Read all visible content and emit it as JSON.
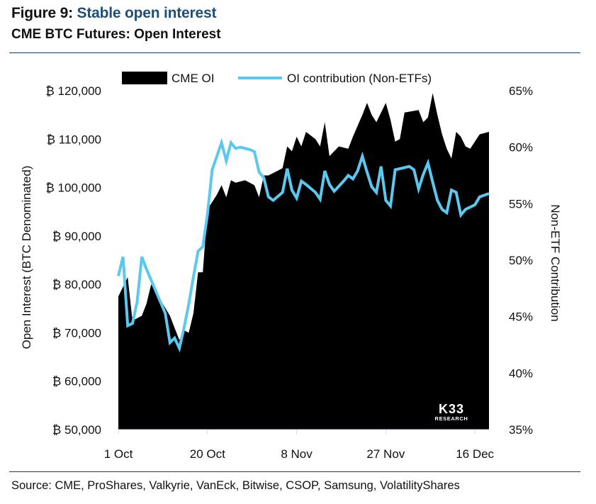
{
  "figure": {
    "label": "Figure 9:",
    "title": "Stable open interest",
    "subtitle": "CME BTC Futures: Open Interest",
    "source": "Source: CME, ProShares, Valkyrie, VanEck, Bitwise, CSOP, Samsung, VolatilityShares",
    "watermark_main": "K33",
    "watermark_sub": "RESEARCH"
  },
  "colors": {
    "area": "#000000",
    "line": "#5bc8f0",
    "title_accent": "#1f4e79",
    "rule": "#1f3864"
  },
  "chart_data": {
    "type": "area",
    "xlabel": "",
    "ylabel": "Open Interest (BTC Denominated)",
    "y2label": "Non-ETF Contribution",
    "ylim": [
      50000,
      120000
    ],
    "y2lim": [
      0.35,
      0.65
    ],
    "yticks": [
      "₿ 120,000",
      "₿ 110,000",
      "₿ 100,000",
      "₿ 90,000",
      "₿ 80,000",
      "₿ 70,000",
      "₿ 60,000",
      "₿ 50,000"
    ],
    "y2ticks": [
      "65%",
      "60%",
      "55%",
      "50%",
      "45%",
      "40%",
      "35%"
    ],
    "xticks": [
      "1 Oct",
      "20 Oct",
      "8 Nov",
      "27 Nov",
      "16 Dec"
    ],
    "x_range": [
      "1 Oct",
      "19 Dec"
    ],
    "legend": "top",
    "grid": false,
    "series": [
      {
        "name": "CME OI",
        "kind": "area",
        "axis": "left",
        "points": [
          [
            "1 Oct",
            77500
          ],
          [
            "3 Oct",
            81500
          ],
          [
            "4 Oct",
            72500
          ],
          [
            "6 Oct",
            73500
          ],
          [
            "7 Oct",
            76000
          ],
          [
            "8 Oct",
            80000
          ],
          [
            "12 Oct",
            73500
          ],
          [
            "13 Oct",
            71000
          ],
          [
            "14 Oct",
            68500
          ],
          [
            "15 Oct",
            70500
          ],
          [
            "16 Oct",
            70000
          ],
          [
            "17 Oct",
            74000
          ],
          [
            "18 Oct",
            82500
          ],
          [
            "19 Oct",
            82500
          ],
          [
            "20 Oct",
            95500
          ],
          [
            "22 Oct",
            98500
          ],
          [
            "23 Oct",
            100500
          ],
          [
            "24 Oct",
            98000
          ],
          [
            "25 Oct",
            101500
          ],
          [
            "26 Oct",
            101000
          ],
          [
            "28 Oct",
            101500
          ],
          [
            "30 Oct",
            100500
          ],
          [
            "31 Oct",
            98000
          ],
          [
            "1 Nov",
            102500
          ],
          [
            "2 Nov",
            102500
          ],
          [
            "4 Nov",
            103500
          ],
          [
            "5 Nov",
            104000
          ],
          [
            "6 Nov",
            108500
          ],
          [
            "7 Nov",
            107500
          ],
          [
            "8 Nov",
            110500
          ],
          [
            "9 Nov",
            108500
          ],
          [
            "10 Nov",
            111500
          ],
          [
            "12 Nov",
            110000
          ],
          [
            "13 Nov",
            108500
          ],
          [
            "14 Nov",
            113500
          ],
          [
            "15 Nov",
            106500
          ],
          [
            "17 Nov",
            108500
          ],
          [
            "19 Nov",
            108000
          ],
          [
            "20 Nov",
            110500
          ],
          [
            "22 Nov",
            115000
          ],
          [
            "23 Nov",
            117500
          ],
          [
            "24 Nov",
            115000
          ],
          [
            "25 Nov",
            113500
          ],
          [
            "27 Nov",
            117500
          ],
          [
            "28 Nov",
            114000
          ],
          [
            "29 Nov",
            109500
          ],
          [
            "30 Nov",
            110000
          ],
          [
            "1 Dec",
            115500
          ],
          [
            "4 Dec",
            116000
          ],
          [
            "5 Dec",
            113500
          ],
          [
            "6 Dec",
            114500
          ],
          [
            "7 Dec",
            119500
          ],
          [
            "8 Dec",
            115000
          ],
          [
            "9 Dec",
            111000
          ],
          [
            "10 Dec",
            108000
          ],
          [
            "11 Dec",
            106000
          ],
          [
            "12 Dec",
            111500
          ],
          [
            "13 Dec",
            110500
          ],
          [
            "14 Dec",
            108500
          ],
          [
            "15 Dec",
            108000
          ],
          [
            "16 Dec",
            109500
          ],
          [
            "17 Dec",
            111000
          ],
          [
            "19 Dec",
            111500
          ]
        ]
      },
      {
        "name": "OI contribution (Non-ETFs)",
        "kind": "line",
        "axis": "right",
        "points": [
          [
            "1 Oct",
            0.486
          ],
          [
            "2 Oct",
            0.503
          ],
          [
            "3 Oct",
            0.442
          ],
          [
            "4 Oct",
            0.444
          ],
          [
            "5 Oct",
            0.463
          ],
          [
            "6 Oct",
            0.503
          ],
          [
            "7 Oct",
            0.492
          ],
          [
            "11 Oct",
            0.453
          ],
          [
            "12 Oct",
            0.427
          ],
          [
            "13 Oct",
            0.431
          ],
          [
            "14 Oct",
            0.422
          ],
          [
            "15 Oct",
            0.44
          ],
          [
            "16 Oct",
            0.461
          ],
          [
            "17 Oct",
            0.485
          ],
          [
            "18 Oct",
            0.508
          ],
          [
            "19 Oct",
            0.512
          ],
          [
            "20 Oct",
            0.541
          ],
          [
            "21 Oct",
            0.58
          ],
          [
            "22 Oct",
            0.592
          ],
          [
            "23 Oct",
            0.604
          ],
          [
            "24 Oct",
            0.588
          ],
          [
            "25 Oct",
            0.604
          ],
          [
            "26 Oct",
            0.599
          ],
          [
            "27 Oct",
            0.6
          ],
          [
            "29 Oct",
            0.598
          ],
          [
            "30 Oct",
            0.596
          ],
          [
            "31 Oct",
            0.578
          ],
          [
            "1 Nov",
            0.573
          ],
          [
            "2 Nov",
            0.556
          ],
          [
            "3 Nov",
            0.553
          ],
          [
            "5 Nov",
            0.56
          ],
          [
            "6 Nov",
            0.581
          ],
          [
            "7 Nov",
            0.562
          ],
          [
            "8 Nov",
            0.555
          ],
          [
            "9 Nov",
            0.57
          ],
          [
            "10 Nov",
            0.567
          ],
          [
            "12 Nov",
            0.56
          ],
          [
            "13 Nov",
            0.554
          ],
          [
            "14 Nov",
            0.579
          ],
          [
            "15 Nov",
            0.567
          ],
          [
            "16 Nov",
            0.561
          ],
          [
            "18 Nov",
            0.57
          ],
          [
            "19 Nov",
            0.575
          ],
          [
            "20 Nov",
            0.572
          ],
          [
            "21 Nov",
            0.579
          ],
          [
            "22 Nov",
            0.592
          ],
          [
            "23 Nov",
            0.578
          ],
          [
            "24 Nov",
            0.565
          ],
          [
            "25 Nov",
            0.56
          ],
          [
            "26 Nov",
            0.583
          ],
          [
            "27 Nov",
            0.553
          ],
          [
            "28 Nov",
            0.548
          ],
          [
            "29 Nov",
            0.58
          ],
          [
            "2 Dec",
            0.583
          ],
          [
            "3 Dec",
            0.58
          ],
          [
            "4 Dec",
            0.563
          ],
          [
            "5 Dec",
            0.576
          ],
          [
            "6 Dec",
            0.586
          ],
          [
            "7 Dec",
            0.569
          ],
          [
            "8 Dec",
            0.553
          ],
          [
            "9 Dec",
            0.545
          ],
          [
            "10 Dec",
            0.542
          ],
          [
            "11 Dec",
            0.562
          ],
          [
            "12 Dec",
            0.56
          ],
          [
            "13 Dec",
            0.54
          ],
          [
            "14 Dec",
            0.545
          ],
          [
            "16 Dec",
            0.549
          ],
          [
            "17 Dec",
            0.556
          ],
          [
            "19 Dec",
            0.559
          ]
        ]
      }
    ]
  }
}
